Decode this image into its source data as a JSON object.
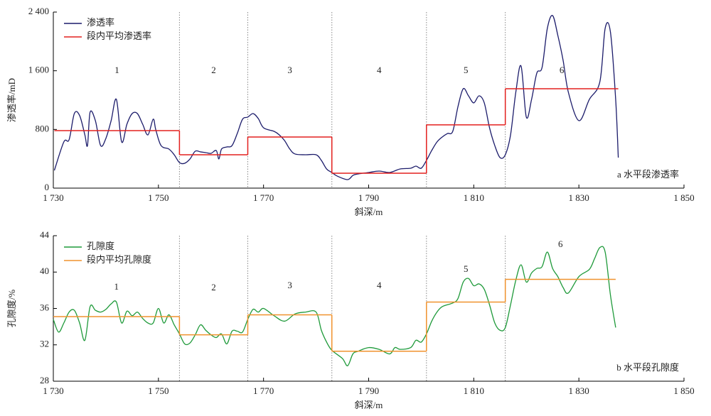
{
  "chart_data": [
    {
      "type": "line",
      "title": "a 水平段渗透率",
      "xlabel": "斜深/m",
      "ylabel": "渗透率/mD",
      "x": [
        1730.2,
        1732,
        1733,
        1734,
        1735,
        1736,
        1736.5,
        1737,
        1738,
        1739,
        1740,
        1741,
        1742,
        1743,
        1744,
        1745,
        1746,
        1747,
        1748,
        1749,
        1749.5,
        1750.5,
        1752,
        1753,
        1754,
        1755,
        1756,
        1757,
        1758,
        1759,
        1760,
        1761,
        1761.5,
        1762,
        1763,
        1764,
        1765,
        1766,
        1767,
        1768,
        1769,
        1770,
        1772,
        1773,
        1774,
        1775,
        1776,
        1778,
        1780,
        1781,
        1782,
        1783,
        1784,
        1786,
        1787,
        1788,
        1790,
        1792,
        1794,
        1796,
        1798,
        1799,
        1800,
        1801,
        1802,
        1803,
        1804,
        1805,
        1806,
        1807,
        1808,
        1809,
        1810,
        1811,
        1812,
        1813,
        1814,
        1815,
        1816,
        1817,
        1818,
        1819,
        1820,
        1821,
        1822,
        1823,
        1824,
        1825,
        1826,
        1827,
        1828,
        1830,
        1832,
        1834,
        1835,
        1836,
        1837,
        1837.5
      ],
      "series": [
        {
          "name": "渗透率",
          "color": "#1c1c6b",
          "values": [
            242,
            630,
            660,
            1017,
            990,
            726,
            580,
            1036,
            920,
            580,
            678,
            920,
            1210,
            630,
            871,
            1016,
            1016,
            871,
            726,
            940,
            794,
            580,
            532,
            455,
            348,
            339,
            397,
            503,
            494,
            484,
            474,
            513,
            397,
            532,
            561,
            580,
            745,
            939,
            968,
            1016,
            948,
            823,
            774,
            726,
            648,
            532,
            465,
            455,
            455,
            378,
            261,
            213,
            165,
            116,
            174,
            194,
            213,
            232,
            213,
            261,
            271,
            300,
            271,
            378,
            513,
            629,
            697,
            745,
            774,
            1113,
            1355,
            1258,
            1162,
            1258,
            1162,
            823,
            580,
            416,
            455,
            726,
            1307,
            1665,
            968,
            1210,
            1568,
            1646,
            2178,
            2352,
            2081,
            1742,
            1307,
            920,
            1210,
            1452,
            2178,
            2130,
            1210,
            416
          ]
        }
      ],
      "segment_mean": {
        "name": "段内平均渗透率",
        "color": "#e3201e",
        "values": [
          784,
          455,
          697,
          203,
          862,
          1355
        ]
      },
      "segment_bounds": [
        1754,
        1767,
        1783,
        1801,
        1816
      ],
      "segment_labels": [
        "1",
        "2",
        "3",
        "4",
        "5",
        "6"
      ],
      "xlim": [
        1730,
        1850
      ],
      "xticks": [
        {
          "value": 1730,
          "label": "1 730"
        },
        {
          "value": 1750,
          "label": "1 750"
        },
        {
          "value": 1770,
          "label": "1 770"
        },
        {
          "value": 1790,
          "label": "1 790"
        },
        {
          "value": 1810,
          "label": "1 810"
        },
        {
          "value": 1830,
          "label": "1 830"
        },
        {
          "value": 1850,
          "label": "1 850"
        }
      ],
      "ylim": [
        0,
        2400
      ],
      "yticks": [
        0,
        800,
        {
          "value": 1600,
          "label": "1 600"
        },
        {
          "value": 2400,
          "label": "2 400"
        }
      ]
    },
    {
      "type": "line",
      "title": "b 水平段孔隙度",
      "xlabel": "斜深/m",
      "ylabel": "孔隙度/%",
      "x": [
        1730,
        1731,
        1732,
        1733,
        1734,
        1735,
        1736,
        1737,
        1738,
        1739,
        1740,
        1741,
        1742,
        1743,
        1744,
        1745,
        1746,
        1747,
        1748,
        1749,
        1750,
        1751,
        1752,
        1753,
        1754,
        1755,
        1756,
        1757,
        1758,
        1759,
        1760,
        1761,
        1762,
        1763,
        1764,
        1765,
        1766,
        1767,
        1768,
        1769,
        1770,
        1772,
        1774,
        1776,
        1778,
        1780,
        1781,
        1782,
        1783,
        1785,
        1786,
        1787,
        1788,
        1790,
        1792,
        1794,
        1795,
        1796,
        1798,
        1799,
        1800,
        1801,
        1802,
        1803,
        1804,
        1806,
        1807,
        1808,
        1809,
        1810,
        1811,
        1812,
        1813,
        1814,
        1815,
        1816,
        1817,
        1818,
        1819,
        1820,
        1821,
        1822,
        1823,
        1824,
        1825,
        1826,
        1827,
        1828,
        1830,
        1832,
        1833,
        1834,
        1835,
        1836,
        1837
      ],
      "series": [
        {
          "name": "孔隙度",
          "color": "#1f9a3a",
          "values": [
            34.8,
            33.4,
            34.4,
            35.6,
            35.8,
            34.4,
            32.5,
            36.2,
            35.8,
            35.6,
            35.9,
            36.5,
            36.7,
            34.4,
            35.7,
            35.2,
            35.6,
            34.9,
            34.4,
            34.4,
            36.0,
            34.4,
            35.3,
            34.2,
            33.2,
            32.1,
            32.2,
            33.1,
            34.2,
            33.6,
            33.1,
            32.8,
            33.2,
            32.1,
            33.5,
            33.5,
            33.4,
            34.8,
            35.9,
            35.6,
            36.0,
            35.2,
            34.6,
            35.4,
            35.6,
            35.6,
            33.6,
            32.3,
            31.4,
            30.5,
            29.7,
            31.0,
            31.3,
            31.7,
            31.5,
            31.0,
            31.7,
            31.5,
            31.7,
            32.5,
            32.3,
            33.2,
            34.6,
            35.6,
            36.2,
            36.6,
            37.1,
            38.9,
            39.3,
            38.5,
            38.7,
            38.1,
            36.4,
            34.4,
            33.6,
            33.9,
            36.4,
            39.1,
            40.8,
            38.9,
            39.9,
            40.4,
            40.6,
            42.2,
            40.4,
            39.5,
            38.3,
            37.7,
            39.5,
            40.3,
            41.5,
            42.7,
            42.2,
            37.5,
            33.9
          ]
        }
      ],
      "segment_mean": {
        "name": "段内平均孔隙度",
        "color": "#f0922e",
        "values": [
          35.1,
          33.1,
          35.3,
          31.3,
          36.7,
          39.2
        ]
      },
      "segment_bounds": [
        1754,
        1767,
        1783,
        1801,
        1816
      ],
      "segment_labels": [
        "1",
        "2",
        "3",
        "4",
        "5",
        "6"
      ],
      "xlim": [
        1730,
        1850
      ],
      "xticks": [
        {
          "value": 1730,
          "label": "1 730"
        },
        {
          "value": 1750,
          "label": "1 750"
        },
        {
          "value": 1770,
          "label": "1 770"
        },
        {
          "value": 1790,
          "label": "1 790"
        },
        {
          "value": 1810,
          "label": "1 810"
        },
        {
          "value": 1830,
          "label": "1 830"
        },
        {
          "value": 1850,
          "label": "1 850"
        }
      ],
      "ylim": [
        28,
        44
      ],
      "yticks": [
        28,
        32,
        36,
        40,
        44
      ]
    }
  ]
}
